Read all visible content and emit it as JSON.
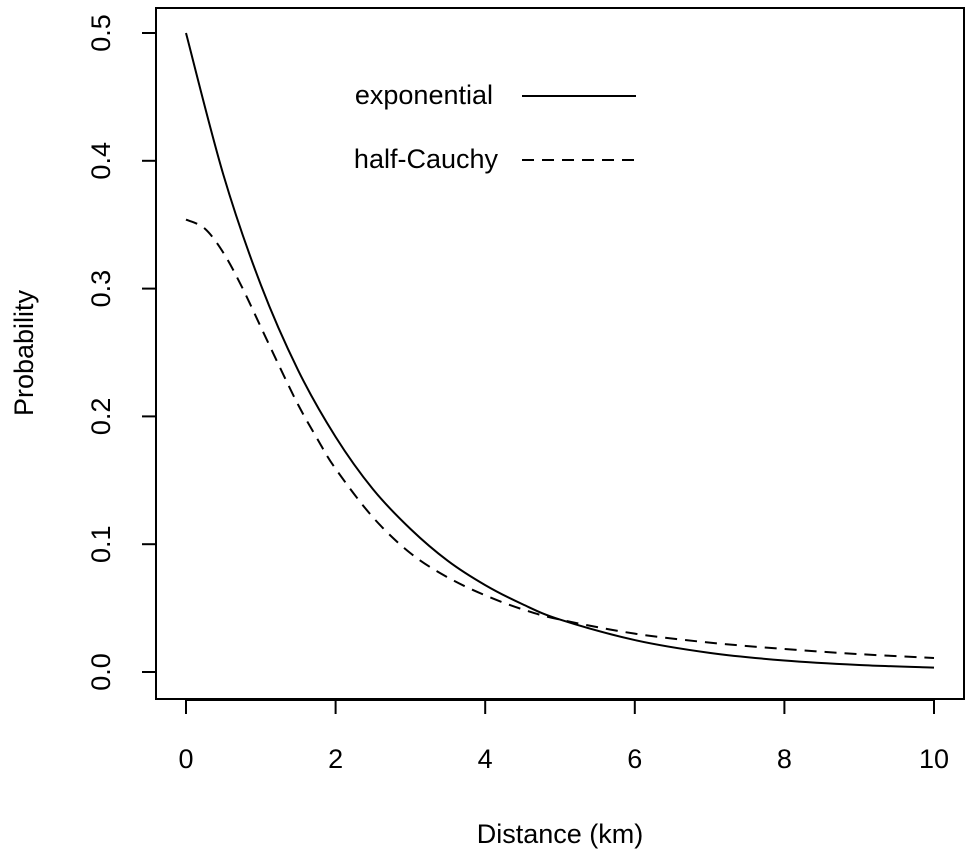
{
  "chart_data": {
    "type": "line",
    "title": "",
    "xlabel": "Distance (km)",
    "ylabel": "Probability",
    "xlim": [
      0,
      10
    ],
    "ylim": [
      0,
      0.5
    ],
    "x_ticks": [
      0,
      2,
      4,
      6,
      8,
      10
    ],
    "x_tick_labels": [
      "0",
      "2",
      "4",
      "6",
      "8",
      "10"
    ],
    "y_ticks": [
      0.0,
      0.1,
      0.2,
      0.3,
      0.4,
      0.5
    ],
    "y_tick_labels": [
      "0.0",
      "0.1",
      "0.2",
      "0.3",
      "0.4",
      "0.5"
    ],
    "grid": false,
    "legend_position": "top-center",
    "series": [
      {
        "name": "exponential",
        "line_style": "solid",
        "color": "#000000",
        "x": [
          0,
          0.5,
          1,
          1.5,
          2,
          2.5,
          3,
          3.5,
          4,
          4.5,
          5,
          6,
          7,
          8,
          9,
          10
        ],
        "y": [
          0.5,
          0.389,
          0.303,
          0.236,
          0.184,
          0.143,
          0.112,
          0.087,
          0.068,
          0.053,
          0.041,
          0.025,
          0.015,
          0.009,
          0.0055,
          0.0034
        ]
      },
      {
        "name": "half-Cauchy",
        "line_style": "dashed",
        "color": "#000000",
        "x": [
          0,
          0.25,
          0.5,
          0.75,
          1,
          1.25,
          1.5,
          1.75,
          2,
          2.5,
          3,
          3.5,
          4,
          4.5,
          5,
          6,
          7,
          8,
          9,
          10
        ],
        "y": [
          0.354,
          0.347,
          0.328,
          0.301,
          0.27,
          0.239,
          0.209,
          0.183,
          0.159,
          0.121,
          0.093,
          0.074,
          0.06,
          0.049,
          0.041,
          0.03,
          0.023,
          0.018,
          0.014,
          0.011
        ]
      }
    ]
  }
}
